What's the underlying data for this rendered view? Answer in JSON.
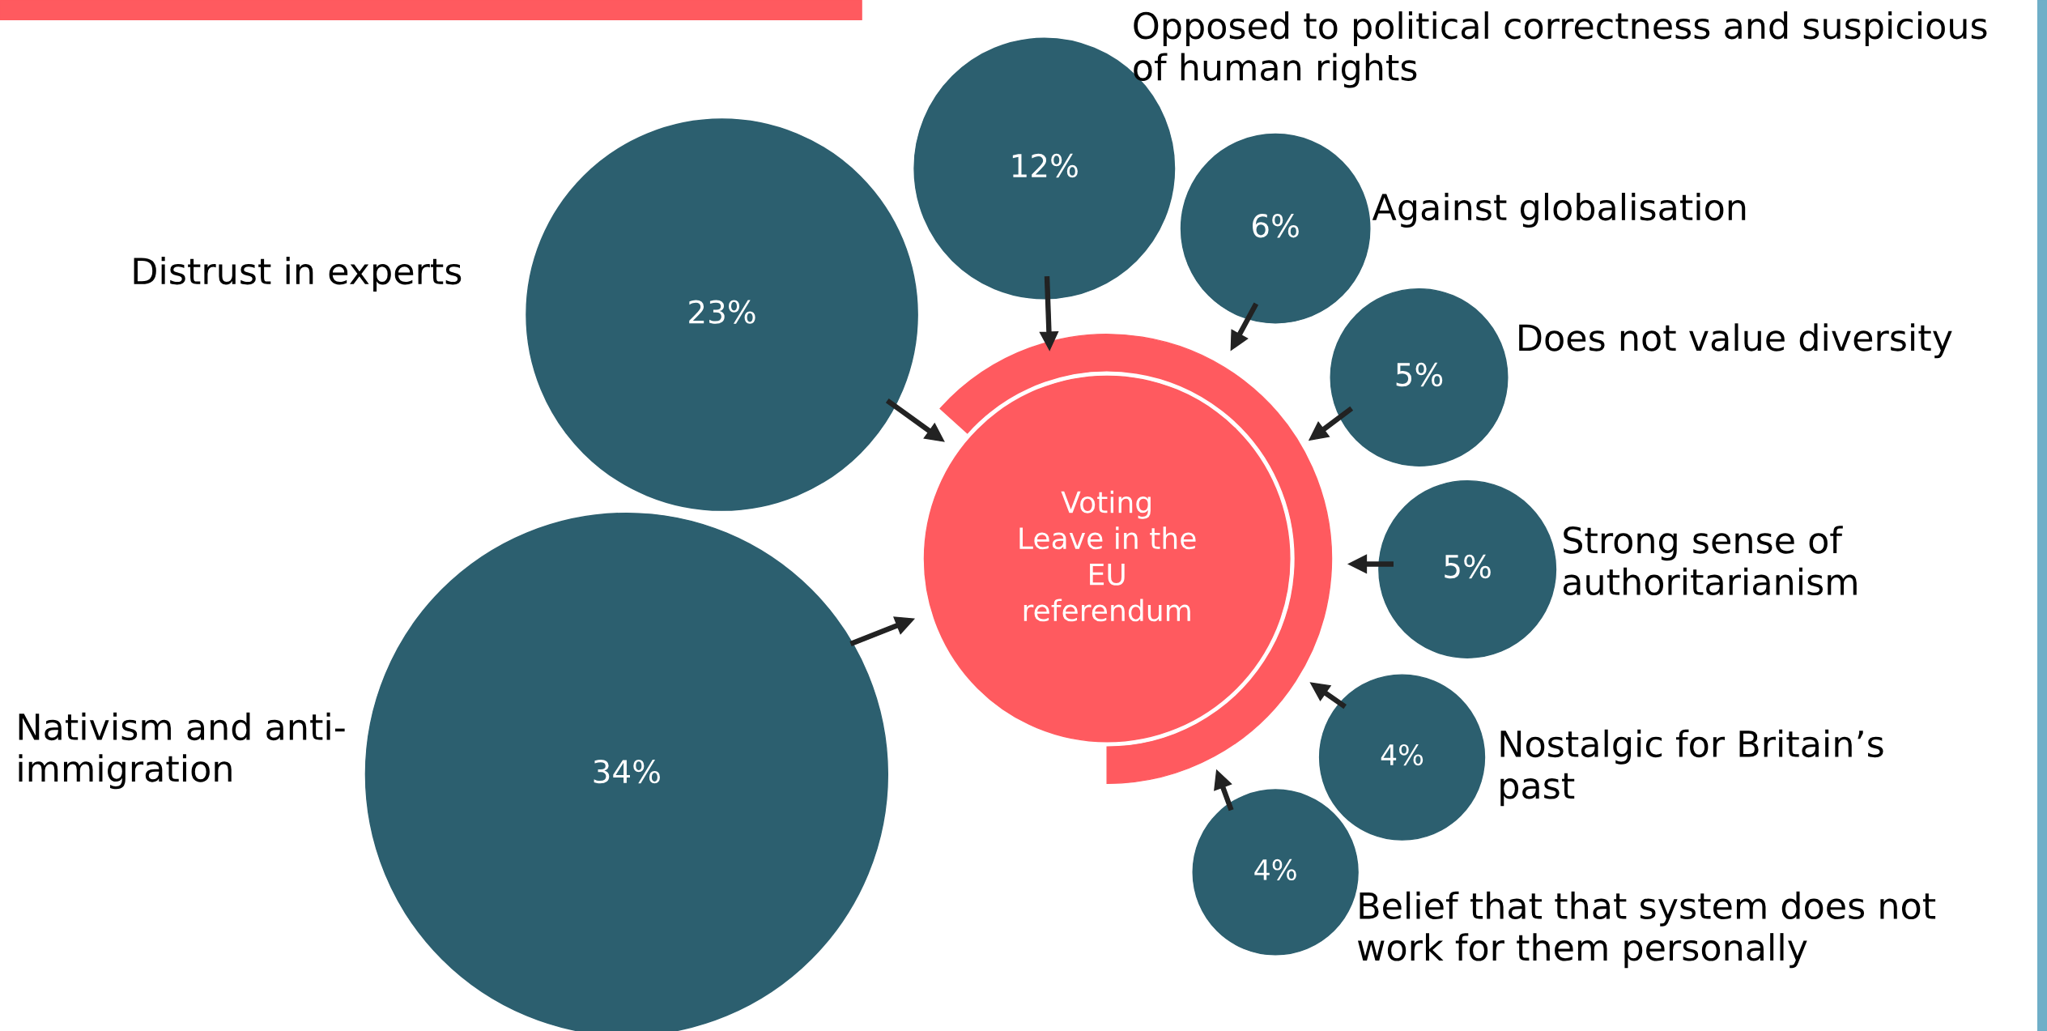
{
  "chart_data": {
    "type": "other",
    "categories": [
      "Nativism and anti-\nimmigration",
      "Distrust in experts",
      "Opposed to political correctness and suspicious\nof human rights",
      "Against globalisation",
      "Does not value diversity",
      "Strong sense of\nauthoritarianism",
      "Nostalgic for Britain’s\npast",
      "Belief that that system does not\nwork for them personally"
    ],
    "values": [
      34,
      23,
      12,
      6,
      5,
      5,
      4,
      4
    ],
    "value_labels": [
      "34%",
      "23%",
      "12%",
      "6%",
      "5%",
      "5%",
      "4%",
      "4%"
    ],
    "color": "#2c5f6f",
    "annotations": [
      "Voting\nLeave in the\nEU\nreferendum"
    ]
  }
}
